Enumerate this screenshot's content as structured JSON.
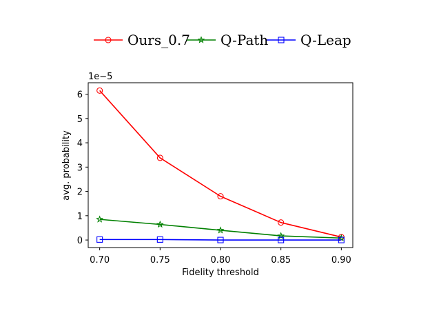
{
  "chart_data": {
    "type": "line",
    "title": "",
    "xlabel": "Fidelity threshold",
    "ylabel": "avg. probability",
    "y_offset_label": "1e−5",
    "x": [
      0.7,
      0.75,
      0.8,
      0.85,
      0.9
    ],
    "x_tick_labels": [
      "0.70",
      "0.75",
      "0.80",
      "0.85",
      "0.90"
    ],
    "xlim": [
      0.6905,
      0.9095
    ],
    "y_ticks": [
      0,
      1,
      2,
      3,
      4,
      5,
      6
    ],
    "y_tick_labels": [
      "0",
      "1",
      "2",
      "3",
      "4",
      "5",
      "6"
    ],
    "ylim": [
      -0.31,
      6.47
    ],
    "y_scale": "1e-5",
    "grid": false,
    "legend_position": "top-center, above plot",
    "series": [
      {
        "name": "Ours_0.7",
        "color": "#ff0000",
        "marker": "circle-open",
        "values": [
          6.15,
          3.38,
          1.8,
          0.72,
          0.12
        ]
      },
      {
        "name": "Q-Path",
        "color": "#008000",
        "marker": "star-open",
        "values": [
          0.85,
          0.64,
          0.4,
          0.17,
          0.08
        ]
      },
      {
        "name": "Q-Leap",
        "color": "#0000ff",
        "marker": "square-open",
        "values": [
          0.02,
          0.02,
          0.0,
          0.0,
          0.0
        ]
      }
    ]
  }
}
